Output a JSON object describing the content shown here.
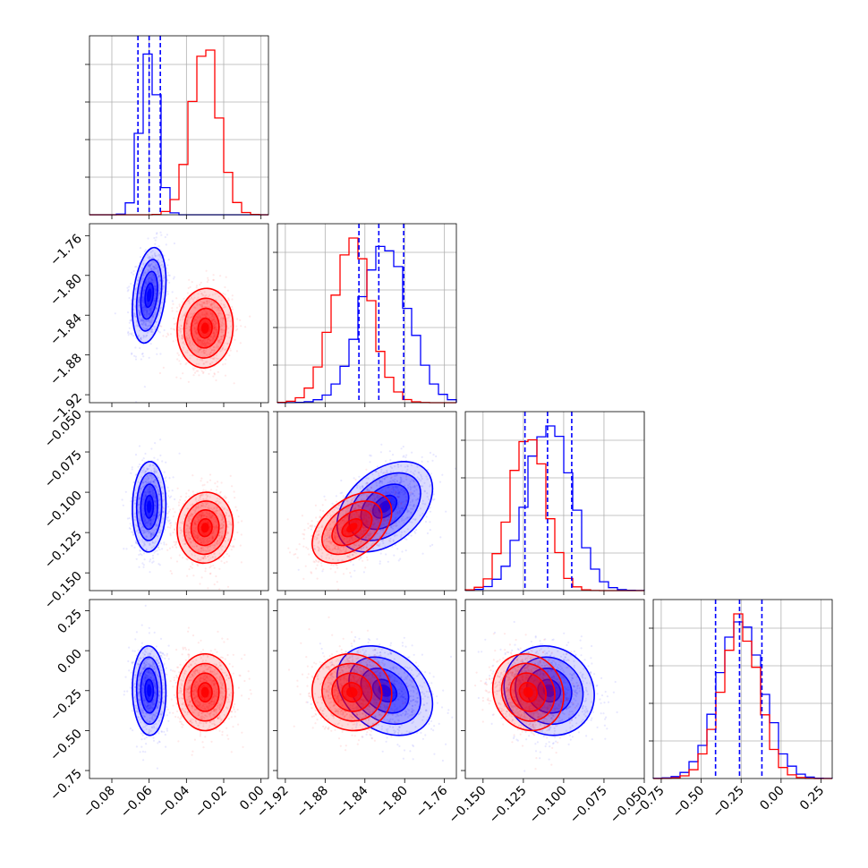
{
  "chart_data": {
    "type": "corner",
    "params": [
      {
        "range": [
          -0.092,
          0.004
        ],
        "ticks": [
          -0.08,
          -0.06,
          -0.04,
          -0.02,
          0.0
        ],
        "tick_labels": [
          "−0.08",
          "−0.06",
          "−0.04",
          "−0.02",
          "0.00"
        ]
      },
      {
        "range": [
          -1.928,
          -1.748
        ],
        "ticks": [
          -1.92,
          -1.88,
          -1.84,
          -1.8,
          -1.76
        ],
        "tick_labels": [
          "−1.92",
          "−1.88",
          "−1.84",
          "−1.80",
          "−1.76"
        ]
      },
      {
        "range": [
          -0.161,
          -0.05
        ],
        "ticks": [
          -0.15,
          -0.125,
          -0.1,
          -0.075,
          -0.05
        ],
        "tick_labels": [
          "−0.150",
          "−0.125",
          "−0.100",
          "−0.075",
          "−0.050"
        ]
      },
      {
        "range": [
          -0.8,
          0.32
        ],
        "ticks": [
          -0.75,
          -0.5,
          -0.25,
          0.0,
          0.25
        ],
        "tick_labels": [
          "−0.75",
          "−0.50",
          "−0.25",
          "0.00",
          "0.25"
        ]
      }
    ],
    "series": [
      {
        "color": "#0000ff",
        "mean": [
          -0.06,
          -1.82,
          -0.109,
          -0.25
        ],
        "sd": [
          0.0045,
          0.024,
          0.014,
          0.14
        ],
        "corr": [
          [
            1,
            0.3,
            0.05,
            -0.05
          ],
          [
            0.3,
            1,
            0.4,
            -0.3
          ],
          [
            0.05,
            0.4,
            1,
            -0.1
          ],
          [
            -0.05,
            -0.3,
            -0.1,
            1
          ]
        ],
        "quantiles": [
          [
            -0.066,
            -0.06,
            -0.054
          ],
          [
            -1.846,
            -1.826,
            -1.801
          ],
          [
            -0.124,
            -0.11,
            -0.095
          ],
          [
            -0.41,
            -0.26,
            -0.12
          ]
        ]
      },
      {
        "color": "#ff0000",
        "mean": [
          -0.03,
          -1.853,
          -0.122,
          -0.26
        ],
        "sd": [
          0.0075,
          0.02,
          0.011,
          0.12
        ],
        "corr": [
          [
            1,
            0.05,
            0.05,
            0
          ],
          [
            0.05,
            1,
            0.45,
            -0.05
          ],
          [
            0.05,
            0.45,
            1,
            -0.1
          ],
          [
            0,
            -0.05,
            -0.1,
            1
          ]
        ]
      }
    ],
    "grid": true,
    "legend": "none"
  }
}
